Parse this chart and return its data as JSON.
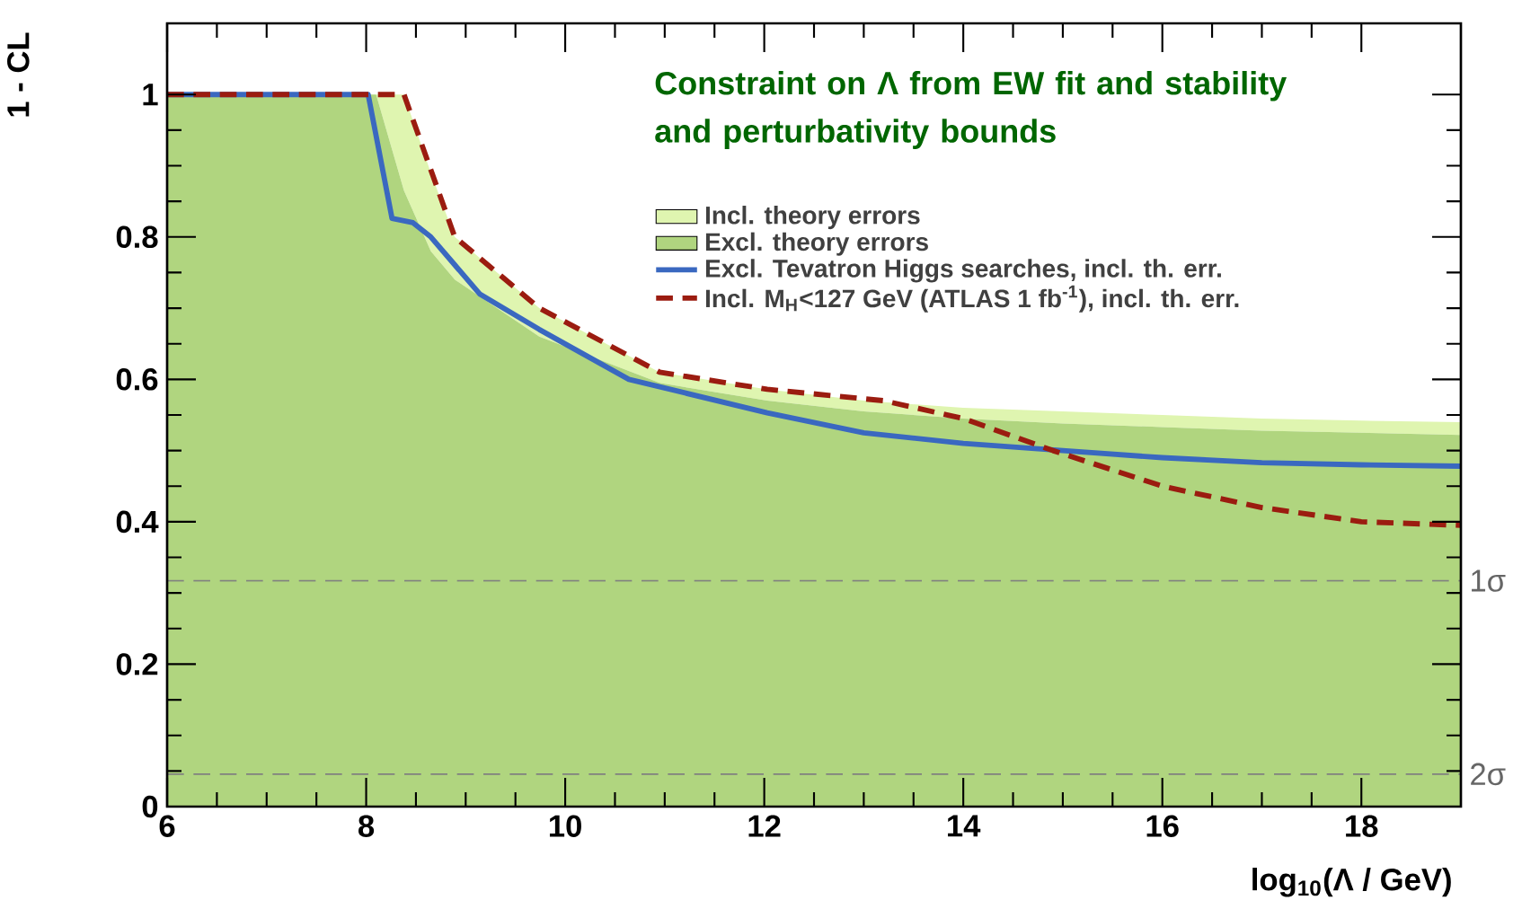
{
  "chart_data": {
    "type": "area",
    "title": "Constraint on Λ from EW fit and stability and perturbativity bounds",
    "xlabel": "log$_{10}$(Λ / GeV)",
    "ylabel": "1 - CL",
    "xlim": [
      6,
      19
    ],
    "ylim": [
      0,
      1.1
    ],
    "xticks": [
      6,
      8,
      10,
      12,
      14,
      16,
      18
    ],
    "yticks": [
      0,
      0.2,
      0.4,
      0.6,
      0.8,
      1
    ],
    "legend": "top right",
    "marker": "none",
    "stacked": true,
    "x": [
      6,
      8.1,
      8.38,
      8.65,
      8.89,
      9.74,
      10.95,
      12.03,
      13,
      14,
      15,
      16,
      17,
      18,
      19
    ],
    "series": [
      {
        "name": "Excl. theory errors",
        "color": "#b0d57f",
        "values": [
          1,
          1,
          0.865,
          0.78,
          0.74,
          0.66,
          0.595,
          0.57,
          0.555,
          0.545,
          0.538,
          0.533,
          0.528,
          0.525,
          0.522
        ]
      },
      {
        "name": "Incl. theory errors",
        "color": "#dff5b0",
        "values": [
          0,
          0,
          0.135,
          0.11,
          0.06,
          0.04,
          0.015,
          0.016,
          0.015,
          0.015,
          0.017,
          0.017,
          0.017,
          0.017,
          0.018
        ]
      },
      {
        "name": "Excl. Tevatron Higgs searches, incl. th. err.",
        "type": "line",
        "color": "#3a68c0",
        "line_style": "solid",
        "x": [
          6,
          8.02,
          8.26,
          8.47,
          8.65,
          9.14,
          9.74,
          10.64,
          12.03,
          13,
          14,
          15,
          16,
          17,
          18,
          19
        ],
        "values": [
          1,
          1,
          0.826,
          0.82,
          0.8,
          0.72,
          0.67,
          0.6,
          0.553,
          0.525,
          0.51,
          0.5,
          0.49,
          0.483,
          0.48,
          0.478
        ]
      },
      {
        "name": "Incl. M$_{H}$<127 GeV (ATLAS 1 fb$^{-1}$), incl. th. err.",
        "type": "line",
        "color": "#9b1c10",
        "line_style": "dashed",
        "x": [
          6,
          8.38,
          8.89,
          9.74,
          10.95,
          12.03,
          13.2,
          14,
          14.9,
          16,
          17,
          18,
          19
        ],
        "values": [
          1,
          1,
          0.8,
          0.7,
          0.61,
          0.586,
          0.57,
          0.545,
          0.5,
          0.45,
          0.42,
          0.4,
          0.395
        ]
      }
    ],
    "ref_lines": [
      {
        "axis": "y",
        "value": 0.317,
        "label": "1σ",
        "color": "#808080",
        "line_style": "dashed"
      },
      {
        "axis": "y",
        "value": 0.0455,
        "label": "2σ",
        "color": "#808080",
        "line_style": "dashed"
      }
    ]
  }
}
